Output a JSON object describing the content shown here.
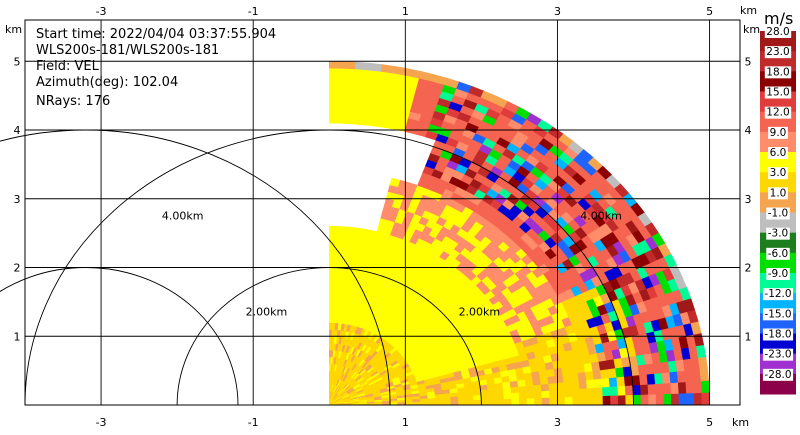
{
  "colors": {
    "grid": "#000000",
    "background": "#ffffff"
  },
  "chart_data": {
    "type": "heatmap",
    "subtype": "radar-ppi-sector",
    "info": {
      "start_time": "Start time: 2022/04/04 03:37:55.904",
      "radar": "WLS200s-181/WLS200s-181",
      "field": "Field: VEL",
      "azimuth": "Azimuth(deg): 102.04",
      "nrays": "NRays: 176"
    },
    "x_unit": "km",
    "y_unit": "km",
    "xlim": [
      -4.0,
      5.4
    ],
    "ylim": [
      0.0,
      5.6
    ],
    "x_ticks": [
      -3,
      -1,
      1,
      3,
      5
    ],
    "y_ticks": [
      1,
      2,
      3,
      4,
      5
    ],
    "grid": true,
    "radar_origin": [
      0.0,
      0.0
    ],
    "sector_azimuth_deg": [
      0,
      90
    ],
    "max_range_km": 5.0,
    "range_rings": [
      {
        "center": [
          0.0,
          0.0
        ],
        "radius_km": 2.0,
        "label": "2.00km",
        "label_at": [
          -1.1,
          1.3
        ]
      },
      {
        "center": [
          0.0,
          0.0
        ],
        "radius_km": 4.0,
        "label": "4.00km",
        "label_at": [
          -2.2,
          2.7
        ]
      },
      {
        "center": [
          -3.2,
          0.0
        ],
        "radius_km": 2.0,
        "label": "2.00km",
        "label_at": [
          1.7,
          1.3
        ]
      },
      {
        "center": [
          -3.2,
          0.0
        ],
        "radius_km": 4.0,
        "label": "4.00km",
        "label_at": [
          3.3,
          2.7
        ]
      }
    ],
    "colorbar": {
      "title": "m/s",
      "placement": "right",
      "bins": [
        {
          "label": "28.0",
          "color": "#a01818"
        },
        {
          "label": "23.0",
          "color": "#c02a2a"
        },
        {
          "label": "18.0",
          "color": "#8b0000"
        },
        {
          "label": "15.0",
          "color": "#e03c3c"
        },
        {
          "label": "12.0",
          "color": "#f56450"
        },
        {
          "label": "9.0",
          "color": "#ff8c6a"
        },
        {
          "label": "6.0",
          "color": "#ffff00"
        },
        {
          "label": "3.0",
          "color": "#ffd700"
        },
        {
          "label": "1.0",
          "color": "#f5a550"
        },
        {
          "label": "-1.0",
          "color": "#bebebe"
        },
        {
          "label": "-3.0",
          "color": "#1e7d1e"
        },
        {
          "label": "-6.0",
          "color": "#00e000"
        },
        {
          "label": "-9.0",
          "color": "#00fa96"
        },
        {
          "label": "-12.0",
          "color": "#00b4ff"
        },
        {
          "label": "-15.0",
          "color": "#1e64ff"
        },
        {
          "label": "-18.0",
          "color": "#0000d2"
        },
        {
          "label": "-23.0",
          "color": "#a030d0"
        },
        {
          "label": "-28.0",
          "color": "#8b0048"
        }
      ]
    },
    "field_regions": [
      {
        "r": [
          0.0,
          1.2
        ],
        "az": [
          0,
          90
        ],
        "value": 2.0
      },
      {
        "r": [
          1.2,
          2.6
        ],
        "az": [
          0,
          75
        ],
        "value": 4.5
      },
      {
        "r": [
          1.2,
          2.6
        ],
        "az": [
          75,
          90
        ],
        "value": 2.0
      },
      {
        "r": [
          2.6,
          3.4
        ],
        "az": [
          15,
          70
        ],
        "value": 6.0
      },
      {
        "r": [
          2.6,
          3.4
        ],
        "az": [
          70,
          90
        ],
        "value": 2.0
      },
      {
        "r": [
          3.4,
          4.1
        ],
        "az": [
          20,
          65
        ],
        "value": 10.0
      },
      {
        "r": [
          3.4,
          4.1
        ],
        "az": [
          65,
          90
        ],
        "value": 2.0
      },
      {
        "r": [
          4.1,
          5.0
        ],
        "az": [
          0,
          15
        ],
        "value": 4.5
      },
      {
        "r": [
          4.1,
          5.0
        ],
        "az": [
          15,
          90
        ],
        "value": 10.0
      }
    ],
    "noise_region": {
      "r": [
        3.6,
        5.0
      ],
      "az": [
        18,
        90
      ]
    },
    "edge_ring": {
      "r": [
        4.9,
        5.0
      ],
      "value": -0.5
    }
  }
}
